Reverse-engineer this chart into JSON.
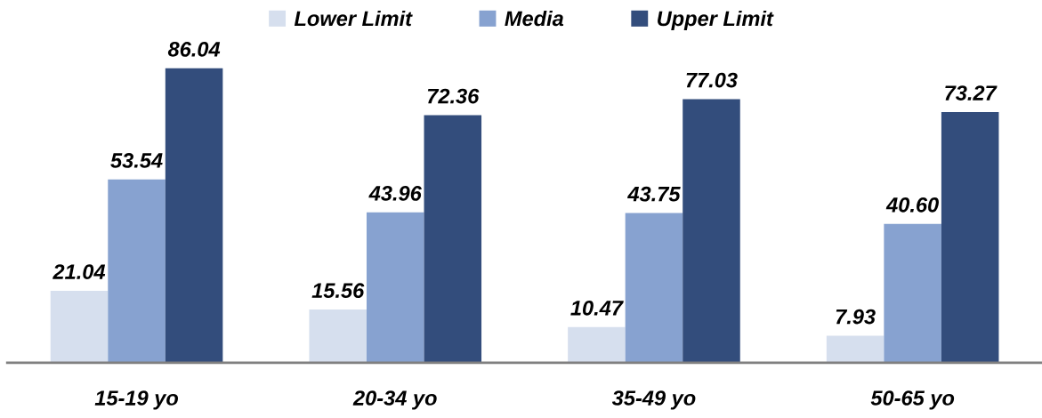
{
  "chart_data": {
    "type": "bar",
    "categories": [
      "15-19 yo",
      "20-34 yo",
      "35-49 yo",
      "50-65 yo"
    ],
    "series": [
      {
        "name": "Lower Limit",
        "color": "#d6dfee",
        "values": [
          21.04,
          15.56,
          10.47,
          7.93
        ],
        "value_labels": [
          "21.04",
          "15.56",
          "10.47",
          "7.93"
        ]
      },
      {
        "name": "Media",
        "color": "#87a2d0",
        "values": [
          53.54,
          43.96,
          43.75,
          40.6
        ],
        "value_labels": [
          "53.54",
          "43.96",
          "43.75",
          "40.60"
        ]
      },
      {
        "name": "Upper Limit",
        "color": "#334d7c",
        "values": [
          86.04,
          72.36,
          77.03,
          73.27
        ],
        "value_labels": [
          "86.04",
          "72.36",
          "77.03",
          "73.27"
        ]
      }
    ],
    "legend": "top",
    "grid": false,
    "tick_labels": "x"
  }
}
